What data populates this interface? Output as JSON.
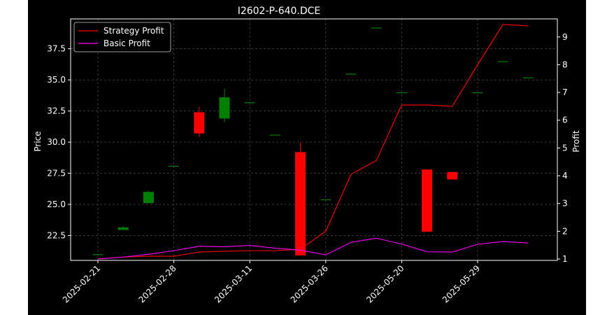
{
  "chart_data": {
    "type": "candlestick",
    "title": "I2602-P-640.DCE",
    "xlabel": "",
    "ylabel_left": "Price",
    "ylabel_right": "Profit",
    "ylim_left": [
      20.5,
      39.9
    ],
    "ylim_right": [
      0.95,
      9.65
    ],
    "left_ticks": [
      22.5,
      25.0,
      27.5,
      30.0,
      32.5,
      35.0,
      37.5
    ],
    "right_ticks": [
      1,
      2,
      3,
      4,
      5,
      6,
      7,
      8,
      9
    ],
    "x_tick_labels": [
      {
        "index": 0,
        "label": "2025-02-21"
      },
      {
        "index": 3,
        "label": "2025-02-28"
      },
      {
        "index": 6,
        "label": "2025-03-11"
      },
      {
        "index": 9,
        "label": "2025-03-26"
      },
      {
        "index": 12,
        "label": "2025-05-20"
      },
      {
        "index": 15,
        "label": "2025-05-29"
      }
    ],
    "grid": true,
    "legend_position": "top-left",
    "colors": {
      "up": "#008000",
      "down": "#ff0000",
      "strategy": "#ff0000",
      "basic": "#ff00ff",
      "background": "#000000",
      "foreground": "#ffffff",
      "grid": "#808080"
    },
    "candles": [
      {
        "open": 21.0,
        "high": 21.0,
        "low": 21.0,
        "close": 21.0
      },
      {
        "open": 22.95,
        "high": 23.25,
        "low": 22.95,
        "close": 23.15
      },
      {
        "open": 25.1,
        "high": 26.1,
        "low": 25.1,
        "close": 26.0
      },
      {
        "open": 28.1,
        "high": 28.1,
        "low": 28.1,
        "close": 28.1
      },
      {
        "open": 32.4,
        "high": 32.8,
        "low": 30.4,
        "close": 30.7
      },
      {
        "open": 31.9,
        "high": 34.3,
        "low": 31.6,
        "close": 33.6
      },
      {
        "open": 33.2,
        "high": 33.2,
        "low": 33.2,
        "close": 33.2
      },
      {
        "open": 30.6,
        "high": 30.6,
        "low": 30.6,
        "close": 30.6
      },
      {
        "open": 29.2,
        "high": 30.0,
        "low": 20.9,
        "close": 20.9
      },
      {
        "open": 25.4,
        "high": 25.4,
        "low": 25.4,
        "close": 25.4
      },
      {
        "open": 35.5,
        "high": 35.5,
        "low": 35.5,
        "close": 35.5
      },
      {
        "open": 39.2,
        "high": 39.2,
        "low": 39.2,
        "close": 39.2
      },
      {
        "open": 34.0,
        "high": 34.0,
        "low": 34.0,
        "close": 34.0
      },
      {
        "open": 27.8,
        "high": 27.8,
        "low": 22.8,
        "close": 22.8
      },
      {
        "open": 27.6,
        "high": 27.6,
        "low": 27.0,
        "close": 27.0
      },
      {
        "open": 34.0,
        "high": 34.0,
        "low": 34.0,
        "close": 34.0
      },
      {
        "open": 36.5,
        "high": 36.5,
        "low": 36.5,
        "close": 36.5
      },
      {
        "open": 35.2,
        "high": 35.2,
        "low": 35.2,
        "close": 35.2
      }
    ],
    "series": [
      {
        "name": "Strategy Profit",
        "axis": "right",
        "values": [
          1.0,
          1.07,
          1.1,
          1.1,
          1.25,
          1.28,
          1.3,
          1.3,
          1.35,
          2.0,
          4.05,
          4.55,
          6.55,
          6.55,
          6.5,
          8.0,
          9.45,
          9.4
        ]
      },
      {
        "name": "Basic Profit",
        "axis": "right",
        "values": [
          1.0,
          1.07,
          1.17,
          1.3,
          1.46,
          1.44,
          1.49,
          1.39,
          1.32,
          1.15,
          1.6,
          1.75,
          1.54,
          1.26,
          1.25,
          1.53,
          1.63,
          1.58
        ]
      }
    ]
  }
}
